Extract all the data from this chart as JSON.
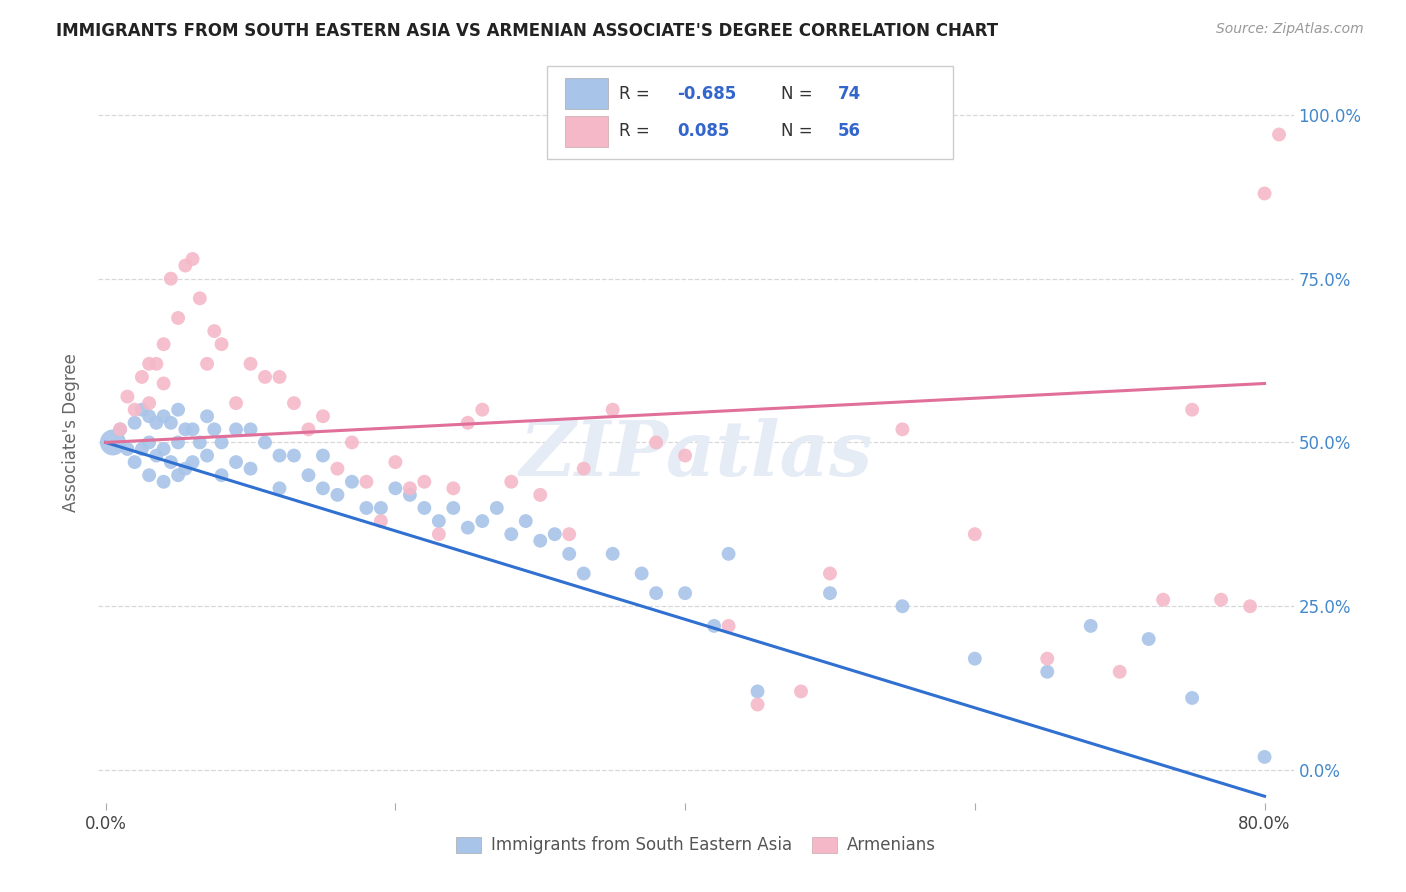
{
  "title": "IMMIGRANTS FROM SOUTH EASTERN ASIA VS ARMENIAN ASSOCIATE'S DEGREE CORRELATION CHART",
  "source": "Source: ZipAtlas.com",
  "ylabel": "Associate's Degree",
  "ytick_labels": [
    "0.0%",
    "25.0%",
    "50.0%",
    "75.0%",
    "100.0%"
  ],
  "ytick_values": [
    0.0,
    0.25,
    0.5,
    0.75,
    1.0
  ],
  "xlim": [
    -0.005,
    0.82
  ],
  "ylim": [
    -0.05,
    1.08
  ],
  "watermark": "ZIPatlas",
  "legend_label1": "Immigrants from South Eastern Asia",
  "legend_label2": "Armenians",
  "R1": -0.685,
  "N1": 74,
  "R2": 0.085,
  "N2": 56,
  "color1": "#a8c4e8",
  "color2": "#f5b8c8",
  "line_color1": "#3070d0",
  "line_color2": "#e0709a",
  "blue_x": [
    0.005,
    0.01,
    0.015,
    0.02,
    0.02,
    0.025,
    0.025,
    0.03,
    0.03,
    0.03,
    0.035,
    0.035,
    0.04,
    0.04,
    0.04,
    0.045,
    0.045,
    0.05,
    0.05,
    0.05,
    0.055,
    0.055,
    0.06,
    0.06,
    0.065,
    0.07,
    0.07,
    0.075,
    0.08,
    0.08,
    0.09,
    0.09,
    0.1,
    0.1,
    0.11,
    0.12,
    0.12,
    0.13,
    0.14,
    0.15,
    0.15,
    0.16,
    0.17,
    0.18,
    0.19,
    0.2,
    0.21,
    0.22,
    0.23,
    0.24,
    0.25,
    0.26,
    0.27,
    0.28,
    0.29,
    0.3,
    0.31,
    0.32,
    0.33,
    0.35,
    0.37,
    0.38,
    0.4,
    0.42,
    0.43,
    0.45,
    0.5,
    0.55,
    0.6,
    0.65,
    0.68,
    0.72,
    0.75,
    0.8
  ],
  "blue_y": [
    0.5,
    0.52,
    0.49,
    0.53,
    0.47,
    0.55,
    0.49,
    0.54,
    0.5,
    0.45,
    0.53,
    0.48,
    0.54,
    0.49,
    0.44,
    0.53,
    0.47,
    0.55,
    0.5,
    0.45,
    0.52,
    0.46,
    0.52,
    0.47,
    0.5,
    0.54,
    0.48,
    0.52,
    0.5,
    0.45,
    0.52,
    0.47,
    0.52,
    0.46,
    0.5,
    0.48,
    0.43,
    0.48,
    0.45,
    0.48,
    0.43,
    0.42,
    0.44,
    0.4,
    0.4,
    0.43,
    0.42,
    0.4,
    0.38,
    0.4,
    0.37,
    0.38,
    0.4,
    0.36,
    0.38,
    0.35,
    0.36,
    0.33,
    0.3,
    0.33,
    0.3,
    0.27,
    0.27,
    0.22,
    0.33,
    0.12,
    0.27,
    0.25,
    0.17,
    0.15,
    0.22,
    0.2,
    0.11,
    0.02
  ],
  "blue_sizes": [
    350,
    100,
    100,
    100,
    100,
    100,
    100,
    100,
    100,
    100,
    100,
    100,
    100,
    100,
    100,
    100,
    100,
    100,
    100,
    100,
    100,
    100,
    100,
    100,
    100,
    100,
    100,
    100,
    100,
    100,
    100,
    100,
    100,
    100,
    100,
    100,
    100,
    100,
    100,
    100,
    100,
    100,
    100,
    100,
    100,
    100,
    100,
    100,
    100,
    100,
    100,
    100,
    100,
    100,
    100,
    100,
    100,
    100,
    100,
    100,
    100,
    100,
    100,
    100,
    100,
    100,
    100,
    100,
    100,
    100,
    100,
    100,
    100,
    100
  ],
  "pink_x": [
    0.01,
    0.015,
    0.02,
    0.025,
    0.03,
    0.03,
    0.035,
    0.04,
    0.04,
    0.045,
    0.05,
    0.055,
    0.06,
    0.065,
    0.07,
    0.075,
    0.08,
    0.09,
    0.1,
    0.11,
    0.12,
    0.13,
    0.14,
    0.15,
    0.16,
    0.17,
    0.18,
    0.19,
    0.2,
    0.21,
    0.22,
    0.23,
    0.24,
    0.25,
    0.26,
    0.28,
    0.3,
    0.32,
    0.33,
    0.35,
    0.38,
    0.4,
    0.43,
    0.45,
    0.48,
    0.5,
    0.55,
    0.6,
    0.65,
    0.7,
    0.73,
    0.75,
    0.77,
    0.79,
    0.8,
    0.81
  ],
  "pink_y": [
    0.52,
    0.57,
    0.55,
    0.6,
    0.62,
    0.56,
    0.62,
    0.65,
    0.59,
    0.75,
    0.69,
    0.77,
    0.78,
    0.72,
    0.62,
    0.67,
    0.65,
    0.56,
    0.62,
    0.6,
    0.6,
    0.56,
    0.52,
    0.54,
    0.46,
    0.5,
    0.44,
    0.38,
    0.47,
    0.43,
    0.44,
    0.36,
    0.43,
    0.53,
    0.55,
    0.44,
    0.42,
    0.36,
    0.46,
    0.55,
    0.5,
    0.48,
    0.22,
    0.1,
    0.12,
    0.3,
    0.52,
    0.36,
    0.17,
    0.15,
    0.26,
    0.55,
    0.26,
    0.25,
    0.88,
    0.97
  ],
  "pink_sizes": [
    100,
    100,
    100,
    100,
    100,
    100,
    100,
    100,
    100,
    100,
    100,
    100,
    100,
    100,
    100,
    100,
    100,
    100,
    100,
    100,
    100,
    100,
    100,
    100,
    100,
    100,
    100,
    100,
    100,
    100,
    100,
    100,
    100,
    100,
    100,
    100,
    100,
    100,
    100,
    100,
    100,
    100,
    100,
    100,
    100,
    100,
    100,
    100,
    100,
    100,
    100,
    100,
    100,
    100,
    100,
    100
  ],
  "blue_line_x": [
    0.0,
    0.8
  ],
  "blue_line_y": [
    0.5,
    -0.04
  ],
  "pink_line_x": [
    0.0,
    0.8
  ],
  "pink_line_y": [
    0.5,
    0.59
  ],
  "grid_color": "#d8d8d8",
  "background_color": "#ffffff"
}
